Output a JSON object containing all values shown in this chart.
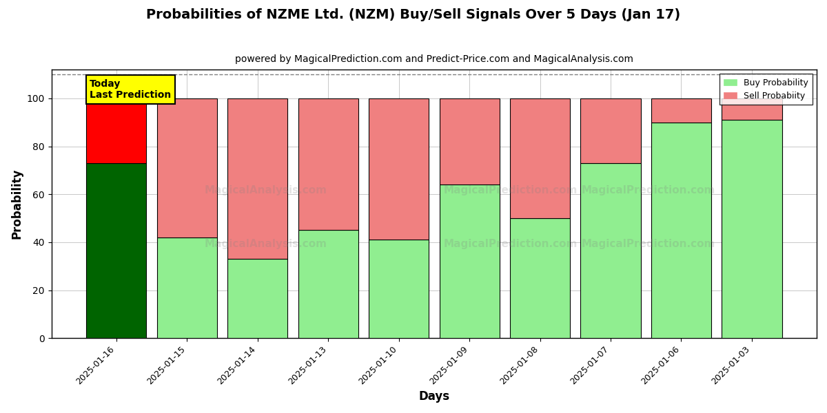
{
  "title": "Probabilities of NZME Ltd. (NZM) Buy/Sell Signals Over 5 Days (Jan 17)",
  "subtitle": "powered by MagicalPrediction.com and Predict-Price.com and MagicalAnalysis.com",
  "xlabel": "Days",
  "ylabel": "Probability",
  "dates": [
    "2025-01-16",
    "2025-01-15",
    "2025-01-14",
    "2025-01-13",
    "2025-01-10",
    "2025-01-09",
    "2025-01-08",
    "2025-01-07",
    "2025-01-06",
    "2025-01-03"
  ],
  "buy_values": [
    73,
    42,
    33,
    45,
    41,
    64,
    50,
    73,
    90,
    91
  ],
  "sell_values": [
    27,
    58,
    67,
    55,
    59,
    36,
    50,
    27,
    10,
    9
  ],
  "today_buy_color": "#006400",
  "today_sell_color": "#ff0000",
  "buy_color": "#90ee90",
  "sell_color": "#f08080",
  "today_label_bg": "#ffff00",
  "today_label_text": "Today\nLast Prediction",
  "legend_buy": "Buy Probability",
  "legend_sell": "Sell Probabiity",
  "ylim": [
    0,
    112
  ],
  "dashed_line_y": 110,
  "title_fontsize": 14,
  "subtitle_fontsize": 10,
  "label_fontsize": 12,
  "bar_width": 0.85
}
